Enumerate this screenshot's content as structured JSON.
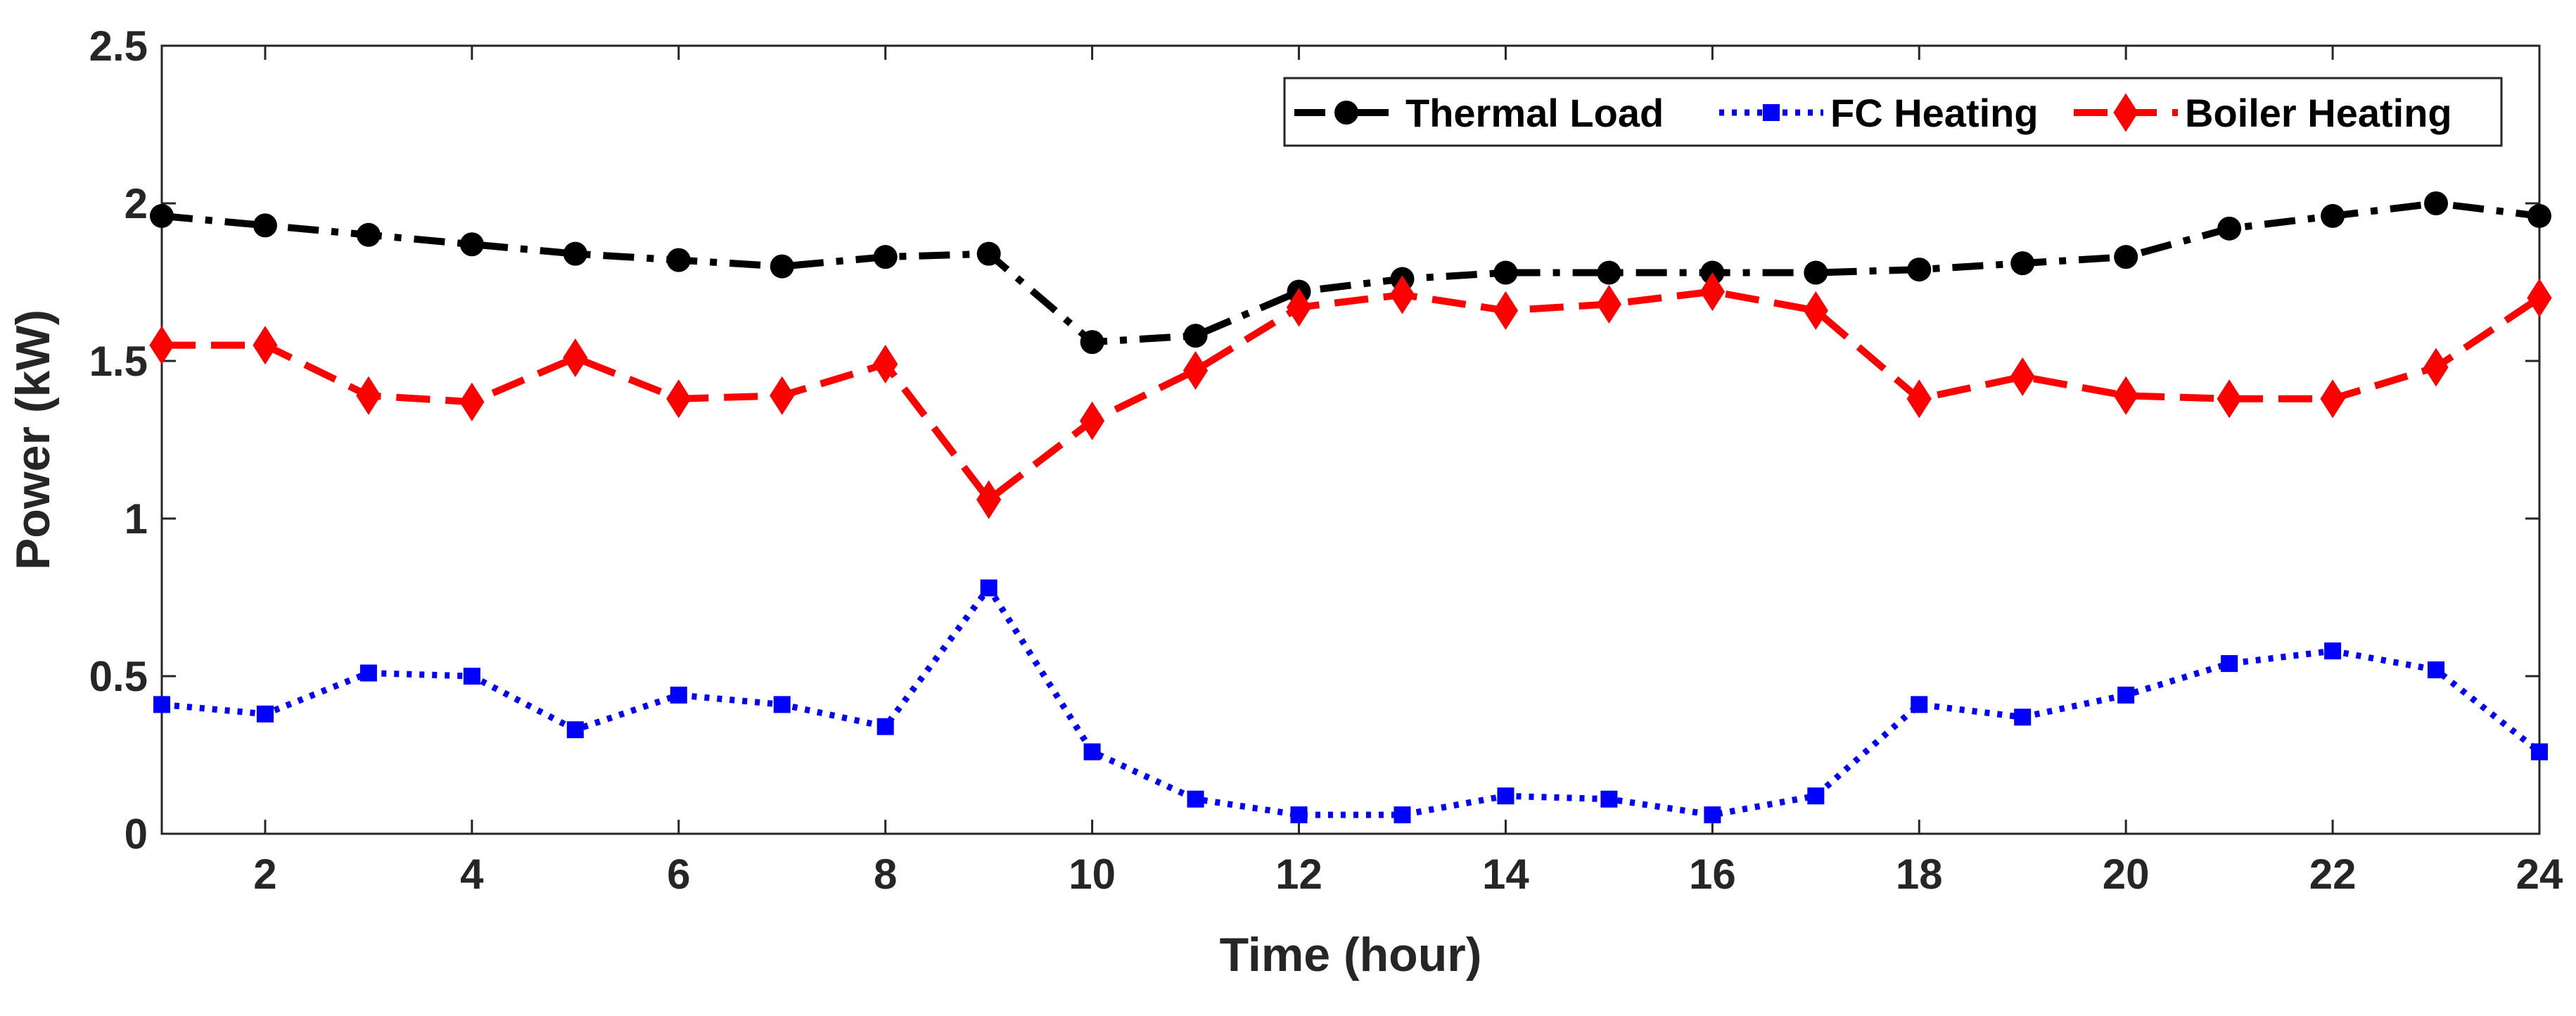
{
  "chart_data": {
    "type": "line",
    "title": "",
    "xlabel": "Time (hour)",
    "ylabel": "Power (kW)",
    "xlim": [
      1,
      24
    ],
    "ylim": [
      0,
      2.5
    ],
    "xticks": [
      2,
      4,
      6,
      8,
      10,
      12,
      14,
      16,
      18,
      20,
      22,
      24
    ],
    "yticks": [
      0,
      0.5,
      1,
      1.5,
      2,
      2.5
    ],
    "ytick_labels": [
      "0",
      "0.5",
      "1",
      "1.5",
      "2",
      "2.5"
    ],
    "grid": false,
    "legend_position": "top-right",
    "x": [
      1,
      2,
      3,
      4,
      5,
      6,
      7,
      8,
      9,
      10,
      11,
      12,
      13,
      14,
      15,
      16,
      17,
      18,
      19,
      20,
      21,
      22,
      23,
      24
    ],
    "series": [
      {
        "name": "Thermal Load",
        "color": "#000000",
        "marker": "circle",
        "linestyle": "dash-dot",
        "values": [
          1.96,
          1.93,
          1.9,
          1.87,
          1.84,
          1.82,
          1.8,
          1.83,
          1.84,
          1.56,
          1.58,
          1.72,
          1.76,
          1.78,
          1.78,
          1.78,
          1.78,
          1.79,
          1.81,
          1.83,
          1.92,
          1.96,
          2.0,
          1.96
        ]
      },
      {
        "name": "FC Heating",
        "color": "#0000ff",
        "marker": "square",
        "linestyle": "dotted",
        "values": [
          0.41,
          0.38,
          0.51,
          0.5,
          0.33,
          0.44,
          0.41,
          0.34,
          0.78,
          0.26,
          0.11,
          0.06,
          0.06,
          0.12,
          0.11,
          0.06,
          0.12,
          0.41,
          0.37,
          0.44,
          0.54,
          0.58,
          0.52,
          0.26
        ]
      },
      {
        "name": "Boiler Heating",
        "color": "#ff0000",
        "marker": "diamond",
        "linestyle": "dashed",
        "values": [
          1.55,
          1.55,
          1.39,
          1.37,
          1.51,
          1.38,
          1.39,
          1.49,
          1.06,
          1.31,
          1.47,
          1.67,
          1.71,
          1.66,
          1.68,
          1.72,
          1.66,
          1.38,
          1.45,
          1.39,
          1.38,
          1.38,
          1.48,
          1.7
        ]
      }
    ]
  }
}
